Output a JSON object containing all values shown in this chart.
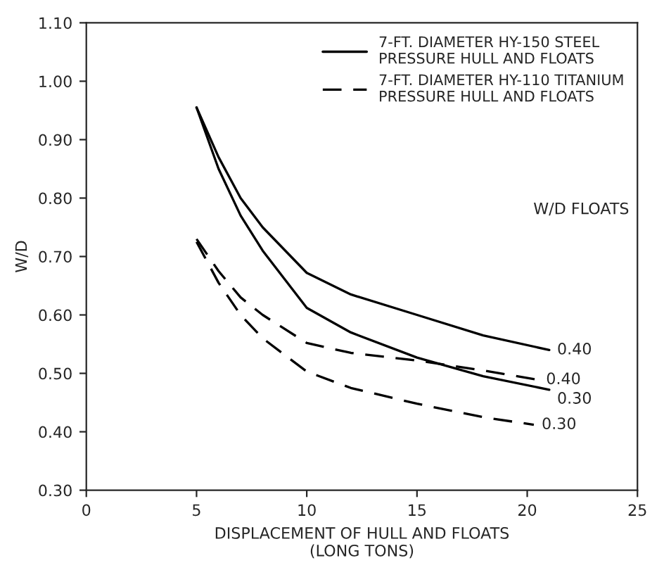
{
  "chart_data": {
    "type": "line",
    "xlabel": "DISPLACEMENT OF HULL AND FLOATS\n(LONG TONS)",
    "ylabel": "W/D",
    "xlim": [
      0,
      25
    ],
    "xticks": [
      0,
      5,
      10,
      15,
      20,
      25
    ],
    "ylim": [
      0.3,
      1.1
    ],
    "yticks": [
      {
        "value": 0.3,
        "label": "0.30"
      },
      {
        "value": 0.4,
        "label": "0.40"
      },
      {
        "value": 0.5,
        "label": "0.50"
      },
      {
        "value": 0.6,
        "label": "0.60"
      },
      {
        "value": 0.7,
        "label": "0.70"
      },
      {
        "value": 0.8,
        "label": "0.80"
      },
      {
        "value": 0.9,
        "label": "0.90"
      },
      {
        "value": 1.0,
        "label": "1.00"
      },
      {
        "value": 1.1,
        "label": "1.10"
      }
    ],
    "legend": "top right",
    "grid": false,
    "series": [
      {
        "name": "7-FT. DIAMETER HY-150 STEEL\nPRESSURE HULL AND FLOATS",
        "color": "#000000",
        "line_style": "solid",
        "x": [
          5,
          6,
          7,
          8,
          10,
          12,
          15,
          18,
          21
        ],
        "values": [
          0.955,
          0.87,
          0.8,
          0.75,
          0.672,
          0.635,
          0.6,
          0.565,
          0.54
        ]
      },
      {
        "color": "#000000",
        "line_style": "solid",
        "x": [
          5,
          6,
          7,
          8,
          10,
          12,
          15,
          18,
          21
        ],
        "values": [
          0.955,
          0.85,
          0.77,
          0.71,
          0.612,
          0.57,
          0.527,
          0.495,
          0.472
        ]
      },
      {
        "name": "7-FT. DIAMETER HY-110 TITANIUM\nPRESSURE HULL AND FLOATS",
        "color": "#000000",
        "line_style": "dashed",
        "x": [
          5,
          6,
          7,
          8,
          10,
          12,
          15,
          18,
          20.5
        ],
        "values": [
          0.73,
          0.675,
          0.63,
          0.6,
          0.552,
          0.535,
          0.522,
          0.505,
          0.489
        ]
      },
      {
        "color": "#000000",
        "line_style": "dashed",
        "x": [
          5,
          6,
          7,
          8,
          10,
          12,
          15,
          18,
          20.3
        ],
        "values": [
          0.725,
          0.655,
          0.6,
          0.56,
          0.503,
          0.475,
          0.448,
          0.425,
          0.412
        ]
      }
    ],
    "annotations": [
      "W/D FLOATS",
      {
        "text": "0.40",
        "x": 21,
        "y": 0.54
      },
      {
        "text": "0.40",
        "x": 20.5,
        "y": 0.489
      },
      {
        "text": "0.30",
        "x": 21,
        "y": 0.472
      },
      {
        "text": "0.30",
        "x": 20.3,
        "y": 0.412
      }
    ]
  }
}
